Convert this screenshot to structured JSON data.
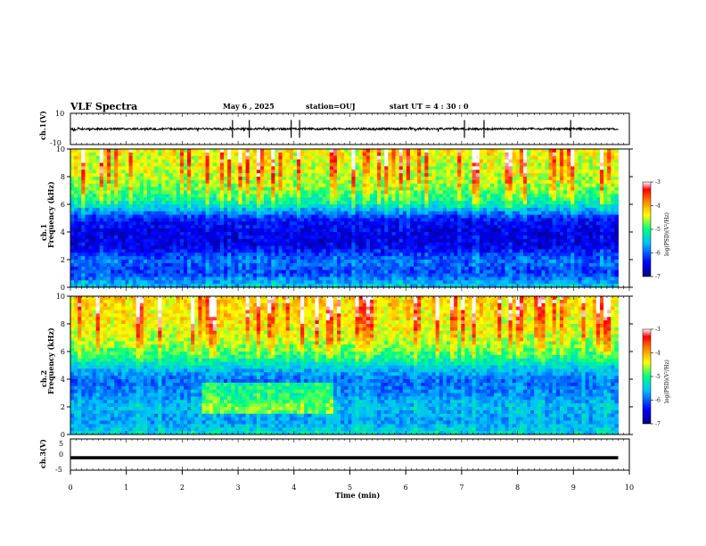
{
  "header": {
    "title": "VLF Spectra",
    "date": "May 6  , 2025",
    "station": "station=OUJ",
    "start": "start  UT =   4 : 30 : 0"
  },
  "colors": {
    "scale": [
      "#00007f",
      "#0000ff",
      "#00bfff",
      "#00ff80",
      "#c0ff00",
      "#ffff00",
      "#ff8000",
      "#ff0000",
      "#ffffff"
    ],
    "waveform": "#000000"
  },
  "chart_data": [
    {
      "type": "line",
      "panel": "ch1-waveform",
      "ylabel": "ch.1(V)",
      "ylim": [
        -10,
        10
      ],
      "ytick_labels": [
        "10",
        "-10"
      ],
      "baseline": 0,
      "spike_times_min": [
        2.9,
        3.2,
        3.95,
        4.1,
        7.05,
        7.4,
        8.95
      ]
    },
    {
      "type": "heatmap",
      "panel": "ch1-spectrogram",
      "ylabel": "ch.1\nFrequency (kHz)",
      "ylim": [
        0,
        10
      ],
      "xlim": [
        0,
        9.8
      ],
      "ytick_labels": [
        "0",
        "2",
        "4",
        "6",
        "8",
        "10"
      ],
      "colorbar": {
        "label": "log(PSD)(V²/Hz)",
        "range": [
          -7,
          -3
        ],
        "tick_labels": [
          "-3",
          "-4",
          "-5",
          "-6",
          "-7"
        ]
      },
      "levels_by_freq_khz": [
        [
          0,
          -5.5
        ],
        [
          1,
          -6.2
        ],
        [
          2,
          -6.0
        ],
        [
          3,
          -6.6
        ],
        [
          4,
          -6.6
        ],
        [
          5,
          -6.3
        ],
        [
          6,
          -5.3
        ],
        [
          7,
          -4.9
        ],
        [
          8,
          -4.7
        ],
        [
          10,
          -4.6
        ]
      ]
    },
    {
      "type": "heatmap",
      "panel": "ch2-spectrogram",
      "ylabel": "ch.2\nFrequency (kHz)",
      "ylim": [
        0,
        10
      ],
      "xlim": [
        0,
        9.8
      ],
      "ytick_labels": [
        "0",
        "2",
        "4",
        "6",
        "8",
        "10"
      ],
      "colorbar": {
        "label": "log(PSD)(V²/Hz)",
        "range": [
          -7,
          -3
        ],
        "tick_labels": [
          "-3",
          "-4",
          "-5",
          "-6",
          "-7"
        ]
      },
      "levels_by_freq_khz": [
        [
          0,
          -5.4
        ],
        [
          1,
          -5.8
        ],
        [
          2,
          -5.6
        ],
        [
          3,
          -5.9
        ],
        [
          4,
          -6.0
        ],
        [
          5,
          -5.4
        ],
        [
          6,
          -4.9
        ],
        [
          7,
          -4.6
        ],
        [
          8,
          -4.5
        ],
        [
          10,
          -4.4
        ]
      ],
      "enhanced_band": {
        "time_min": [
          2.35,
          4.7
        ],
        "freq_khz": [
          1.5,
          3.8
        ]
      }
    },
    {
      "type": "line",
      "panel": "ch3-waveform",
      "ylabel": "ch.3(V)",
      "ylim": [
        -5,
        5
      ],
      "ytick_labels": [
        "5",
        "0",
        "-5"
      ],
      "baseline": -1,
      "xlabel": "Time (min)",
      "xlim": [
        0,
        10
      ],
      "xtick_labels": [
        "0",
        "1",
        "2",
        "3",
        "4",
        "5",
        "6",
        "7",
        "8",
        "9",
        "10"
      ]
    }
  ]
}
